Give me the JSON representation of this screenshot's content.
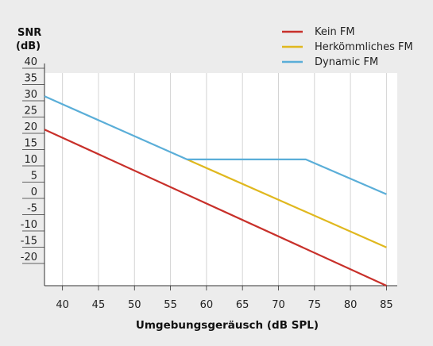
{
  "chart_data": {
    "type": "line",
    "ylabel_line1": "SNR",
    "ylabel_line2": "(dB)",
    "xlabel": "Umgebungsgeräusch (dB SPL)",
    "xlim": [
      37.5,
      86.5
    ],
    "ylim": [
      -22,
      42
    ],
    "xticks": [
      40,
      45,
      50,
      55,
      60,
      65,
      70,
      75,
      80,
      85
    ],
    "yticks": [
      40,
      35,
      30,
      25,
      20,
      15,
      10,
      5,
      0,
      -5,
      -10,
      -15,
      -20
    ],
    "grid": "vertical",
    "legend_position": "top-right",
    "series": [
      {
        "name": "Kein FM",
        "color": "#c8302a",
        "points": [
          [
            37.5,
            25
          ],
          [
            85,
            -22
          ]
        ]
      },
      {
        "name": "Herkömmliches FM",
        "color": "#e0b81e",
        "points": [
          [
            57.3,
            16
          ],
          [
            85,
            -10.5
          ]
        ]
      },
      {
        "name": "Dynamic FM",
        "color": "#5aaed8",
        "points": [
          [
            37.5,
            35
          ],
          [
            57.3,
            16
          ],
          [
            73.8,
            16
          ],
          [
            85,
            5.5
          ]
        ]
      }
    ]
  }
}
